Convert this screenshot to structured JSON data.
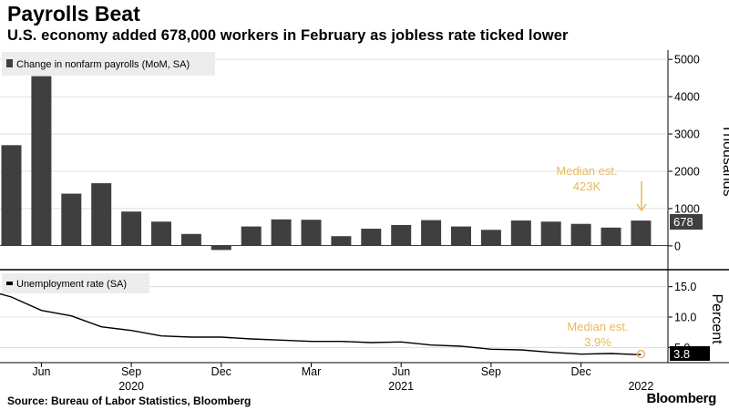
{
  "header": {
    "title": "Payrolls Beat",
    "subtitle": "U.S. economy added 678,000 workers in February as jobless rate ticked lower"
  },
  "footer": {
    "source": "Source: Bureau of Labor Statistics, Bloomberg",
    "brand": "Bloomberg"
  },
  "colors": {
    "bar": "#3f3f3f",
    "line": "#000000",
    "annotation": "#e6b95c",
    "value_box": "#3f3f3f",
    "grid": "#d9d9d9"
  },
  "chart_data": [
    {
      "type": "bar",
      "legend": "Change in nonfarm payrolls (MoM, SA)",
      "ylabel": "Thousands",
      "ylim": [
        -150,
        5200
      ],
      "yticks": [
        0,
        1000,
        2000,
        3000,
        4000,
        5000
      ],
      "yticklabels": [
        "0",
        "1000",
        "2000",
        "3000",
        "4000",
        "5000"
      ],
      "categories": [
        "May 2020",
        "Jun 2020",
        "Jul 2020",
        "Aug 2020",
        "Sep 2020",
        "Oct 2020",
        "Nov 2020",
        "Dec 2020",
        "Jan 2021",
        "Feb 2021",
        "Mar 2021",
        "Apr 2021",
        "May 2021",
        "Jun 2021",
        "Jul 2021",
        "Aug 2021",
        "Sep 2021",
        "Oct 2021",
        "Nov 2021",
        "Dec 2021",
        "Jan 2022",
        "Feb 2022"
      ],
      "values": [
        2700,
        4550,
        1400,
        1680,
        920,
        650,
        320,
        -110,
        520,
        710,
        700,
        260,
        460,
        560,
        690,
        520,
        430,
        680,
        650,
        590,
        490,
        678
      ],
      "latest_label": "678",
      "annotation": {
        "text_line1": "Median est.",
        "text_line2": "423K",
        "value": 423
      }
    },
    {
      "type": "line",
      "legend": "Unemployment rate (SA)",
      "ylabel": "Percent",
      "ylim": [
        2.5,
        17.5
      ],
      "yticks": [
        5,
        10,
        15
      ],
      "yticklabels": [
        "5.0",
        "10.0",
        "15.0"
      ],
      "categories": [
        "Apr 2020",
        "May 2020",
        "Jun 2020",
        "Jul 2020",
        "Aug 2020",
        "Sep 2020",
        "Oct 2020",
        "Nov 2020",
        "Dec 2020",
        "Jan 2021",
        "Feb 2021",
        "Mar 2021",
        "Apr 2021",
        "May 2021",
        "Jun 2021",
        "Jul 2021",
        "Aug 2021",
        "Sep 2021",
        "Oct 2021",
        "Nov 2021",
        "Dec 2021",
        "Jan 2022",
        "Feb 2022"
      ],
      "values": [
        14.7,
        13.3,
        11.1,
        10.2,
        8.4,
        7.8,
        6.9,
        6.7,
        6.7,
        6.4,
        6.2,
        6.0,
        6.0,
        5.8,
        5.9,
        5.4,
        5.2,
        4.7,
        4.6,
        4.2,
        3.9,
        4.0,
        3.8
      ],
      "latest_label": "3.8",
      "annotation": {
        "text_line1": "Median est.",
        "text_line2": "3.9%",
        "value": 3.9
      }
    }
  ],
  "x_axis": {
    "ticks": [
      {
        "label": "Jun",
        "month": "Jun 2020"
      },
      {
        "label": "Sep",
        "month": "Sep 2020"
      },
      {
        "label": "Dec",
        "month": "Dec 2020"
      },
      {
        "label": "Mar",
        "month": "Mar 2021"
      },
      {
        "label": "Jun",
        "month": "Jun 2021"
      },
      {
        "label": "Sep",
        "month": "Sep 2021"
      },
      {
        "label": "Dec",
        "month": "Dec 2021"
      }
    ],
    "years": [
      {
        "label": "2020",
        "month": "Sep 2020"
      },
      {
        "label": "2021",
        "month": "Jun 2021"
      },
      {
        "label": "2022",
        "month": "Feb 2022"
      }
    ]
  }
}
